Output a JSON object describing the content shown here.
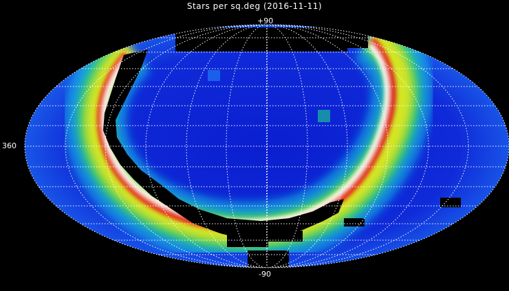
{
  "title": "Stars per sq.deg (2016-11-11)",
  "labels": {
    "north": "+90",
    "south": "-90",
    "longitude_edge": "360"
  },
  "colors": {
    "background": "#000000",
    "sky_low": "#0a1fd0",
    "sky_mid": "#1e6ef0",
    "cyan": "#19d2e6",
    "green": "#2fe02f",
    "yellow": "#e8e81e",
    "red": "#e81e1e",
    "white": "#ffffff",
    "grid": "#ffffff"
  }
}
